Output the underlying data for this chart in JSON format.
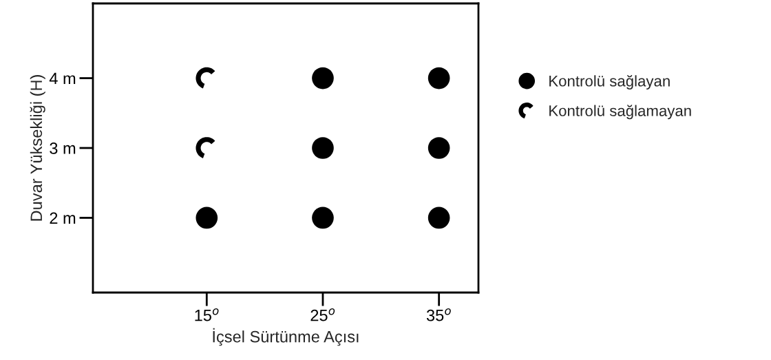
{
  "chart_data": {
    "type": "scatter",
    "xlabel": "İçsel Sürtünme Açısı",
    "ylabel": "Duvar Yüksekliği (H)",
    "xlim": [
      5.2,
      38.4
    ],
    "xticks": [
      {
        "value": 15,
        "label": "15$^{o}$"
      },
      {
        "value": 25,
        "label": "25$^{o}$"
      },
      {
        "value": 35,
        "label": "35$^{o}$"
      }
    ],
    "ylim": [
      0.93,
      5.07
    ],
    "yticks": [
      {
        "value": 2,
        "label": "2 m"
      },
      {
        "value": 3,
        "label": "3 m"
      },
      {
        "value": 4,
        "label": "4 m"
      }
    ],
    "grid": false,
    "legend": "right",
    "marker": "circle",
    "series": [
      {
        "name": "Kontrolü sağlayan",
        "color": "#000000",
        "x": [
          15,
          25,
          35,
          25,
          35,
          25,
          35
        ],
        "values": [
          2,
          2,
          2,
          3,
          3,
          4,
          4
        ]
      },
      {
        "name": "Kontrolü sağlamayan",
        "color": "#000000",
        "x": [
          15,
          15
        ],
        "values": [
          3,
          4
        ]
      }
    ]
  }
}
